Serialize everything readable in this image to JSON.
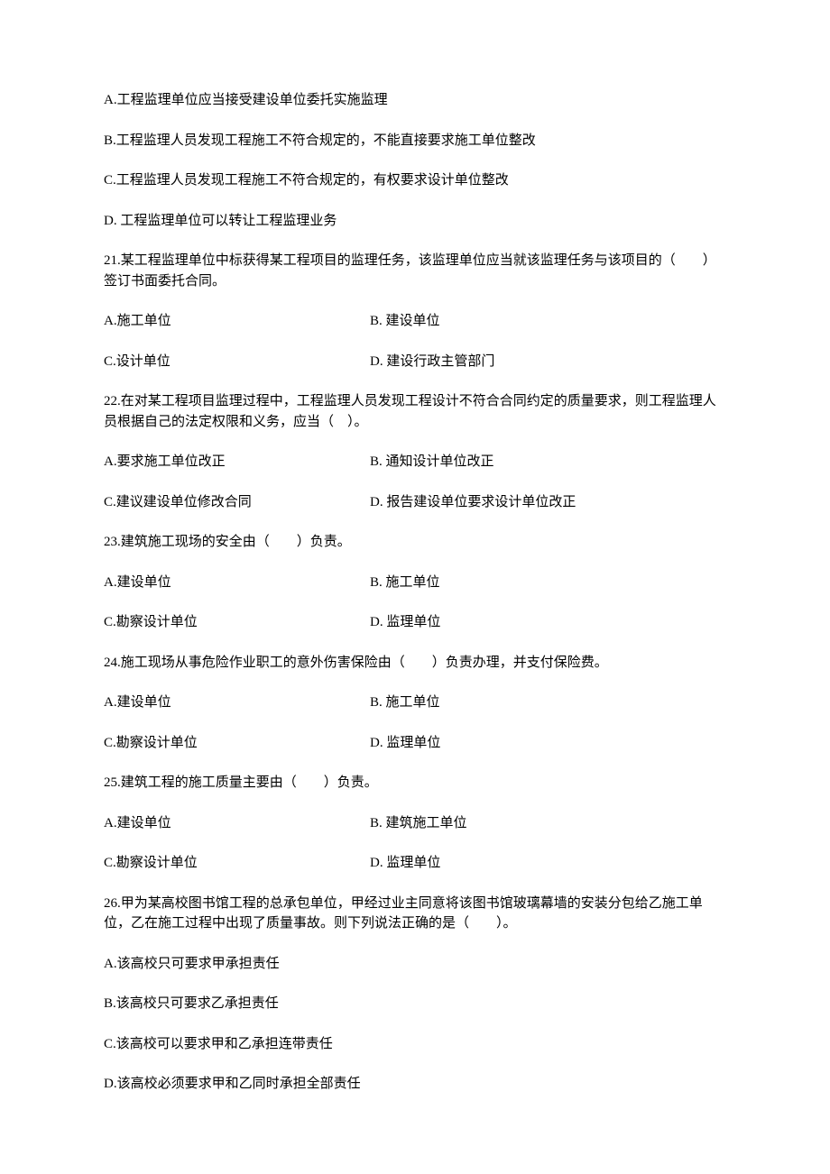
{
  "q20": {
    "optA": "A.工程监理单位应当接受建设单位委托实施监理",
    "optB": "B.工程监理人员发现工程施工不符合规定的，不能直接要求施工单位整改",
    "optC": "C.工程监理人员发现工程施工不符合规定的，有权要求设计单位整改",
    "optD": "D.  工程监理单位可以转让工程监理业务"
  },
  "q21": {
    "stem": "21.某工程监理单位中标获得某工程项目的监理任务，该监理单位应当就该监理任务与该项目的（　　）签订书面委托合同。",
    "optA": "A.施工单位",
    "optB": "B.  建设单位",
    "optC": "C.设计单位",
    "optD": "D.  建设行政主管部门"
  },
  "q22": {
    "stem": "22.在对某工程项目监理过程中，工程监理人员发现工程设计不符合合同约定的质量要求，则工程监理人员根据自己的法定权限和义务，应当（　）。",
    "optA": "A.要求施工单位改正",
    "optB": "B.  通知设计单位改正",
    "optC": "C.建议建设单位修改合同",
    "optD": "D.  报告建设单位要求设计单位改正"
  },
  "q23": {
    "stem": "23.建筑施工现场的安全由（　　）负责。",
    "optA": "A.建设单位",
    "optB": "B.  施工单位",
    "optC": "C.勘察设计单位",
    "optD": "D.  监理单位"
  },
  "q24": {
    "stem": "24.施工现场从事危险作业职工的意外伤害保险由（　　）负责办理，并支付保险费。",
    "optA": "A.建设单位",
    "optB": "B.  施工单位",
    "optC": "C.勘察设计单位",
    "optD": "D.  监理单位"
  },
  "q25": {
    "stem": "25.建筑工程的施工质量主要由（　　）负责。",
    "optA": "A.建设单位",
    "optB": "B.  建筑施工单位",
    "optC": "C.勘察设计单位",
    "optD": "D.  监理单位"
  },
  "q26": {
    "stem": "26.甲为某高校图书馆工程的总承包单位，甲经过业主同意将该图书馆玻璃幕墙的安装分包给乙施工单位，乙在施工过程中出现了质量事故。则下列说法正确的是（　　）。",
    "optA": "A.该高校只可要求甲承担责任",
    "optB": "B.该高校只可要求乙承担责任",
    "optC": "C.该高校可以要求甲和乙承担连带责任",
    "optD": "D.该高校必须要求甲和乙同时承担全部责任"
  }
}
